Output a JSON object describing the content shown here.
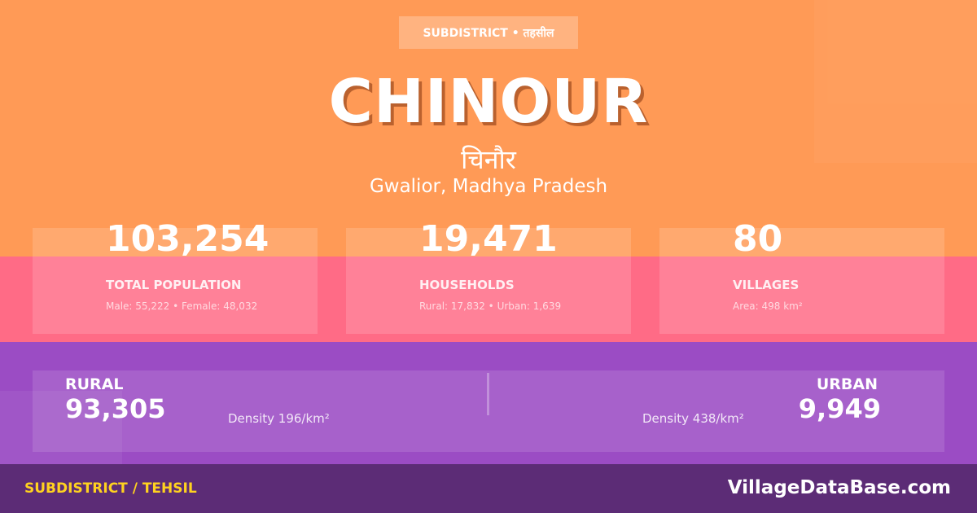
{
  "header": {
    "badge": "SUBDISTRICT • तहसील",
    "title": "CHINOUR",
    "title_hindi": "चिनौर",
    "location": "Gwalior, Madhya Pradesh"
  },
  "stats": [
    {
      "value": "103,254",
      "label": "TOTAL POPULATION",
      "detail": "Male: 55,222 • Female: 48,032"
    },
    {
      "value": "19,471",
      "label": "HOUSEHOLDS",
      "detail": "Rural: 17,832 • Urban: 1,639"
    },
    {
      "value": "80",
      "label": "VILLAGES",
      "detail": "Area: 498 km²"
    }
  ],
  "split": {
    "rural_label": "RURAL",
    "rural_value": "93,305",
    "rural_density": "Density 196/km²",
    "urban_label": "URBAN",
    "urban_value": "9,949",
    "urban_density": "Density 438/km²"
  },
  "footer": {
    "type": "SUBDISTRICT / TEHSIL",
    "site": "VillageDataBase.com"
  },
  "colors": {
    "orange": "#ff9a56",
    "pink": "#ff6b86",
    "purple": "#9b4cc4",
    "footer": "#5c2c76",
    "accent": "#ffd21f"
  }
}
